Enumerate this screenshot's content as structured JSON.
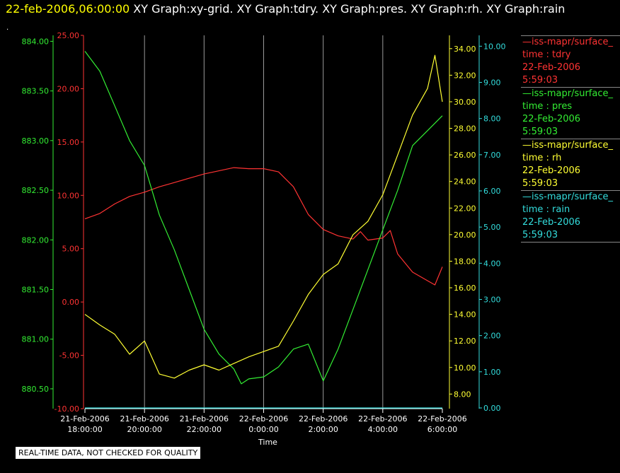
{
  "header": {
    "timestamp": "22-feb-2006,06:00:00",
    "titles": [
      "XY Graph:xy-grid.",
      "XY Graph:tdry.",
      "XY Graph:pres.",
      "XY Graph:rh.",
      "XY Graph:rain"
    ]
  },
  "footer": {
    "quality_note": "REAL-TIME DATA, NOT CHECKED FOR QUALITY"
  },
  "legend": [
    {
      "name": "—iss-mapr/surface_",
      "var": "time : tdry",
      "date": "22-Feb-2006",
      "time": "5:59:03",
      "color": "#ff3333"
    },
    {
      "name": "—iss-mapr/surface_",
      "var": "time : pres",
      "date": "22-Feb-2006",
      "time": "5:59:03",
      "color": "#33ee33"
    },
    {
      "name": "—iss-mapr/surface_",
      "var": "time : rh",
      "date": "22-Feb-2006",
      "time": "5:59:03",
      "color": "#ffff33"
    },
    {
      "name": "—iss-mapr/surface_",
      "var": "time : rain",
      "date": "22-Feb-2006",
      "time": "5:59:03",
      "color": "#33dddd"
    }
  ],
  "chart_data": {
    "type": "line",
    "xlabel": "Time",
    "x_ticks": [
      {
        "value": "2006-02-21T18:00:00",
        "date": "21-Feb-2006",
        "time": "18:00:00"
      },
      {
        "value": "2006-02-21T20:00:00",
        "date": "21-Feb-2006",
        "time": "20:00:00"
      },
      {
        "value": "2006-02-21T22:00:00",
        "date": "21-Feb-2006",
        "time": "22:00:00"
      },
      {
        "value": "2006-02-22T00:00:00",
        "date": "22-Feb-2006",
        "time": "0:00:00"
      },
      {
        "value": "2006-02-22T02:00:00",
        "date": "22-Feb-2006",
        "time": "2:00:00"
      },
      {
        "value": "2006-02-22T04:00:00",
        "date": "22-Feb-2006",
        "time": "4:00:00"
      },
      {
        "value": "2006-02-22T06:00:00",
        "date": "22-Feb-2006",
        "time": "6:00:00"
      }
    ],
    "xlim": [
      "2006-02-21T18:00:00",
      "2006-02-22T06:00:00"
    ],
    "grid": {
      "x": true,
      "y": false
    },
    "axes": {
      "pres": {
        "color": "#33ee33",
        "ylim": [
          880.3,
          884.06
        ],
        "ticks": [
          "880.50",
          "881.00",
          "881.50",
          "882.00",
          "882.50",
          "883.00",
          "883.50",
          "884.00"
        ]
      },
      "tdry": {
        "color": "#ff3333",
        "ylim": [
          -10.0,
          25.0
        ],
        "ticks": [
          "-10.00",
          "-5.00",
          "0.00",
          "5.00",
          "10.00",
          "15.00",
          "20.00",
          "25.00"
        ]
      },
      "rh": {
        "color": "#ffff33",
        "ylim": [
          6.9,
          35.0
        ],
        "ticks": [
          "8.00",
          "10.00",
          "12.00",
          "14.00",
          "16.00",
          "18.00",
          "20.00",
          "22.00",
          "24.00",
          "26.00",
          "28.00",
          "30.00",
          "32.00",
          "34.00"
        ]
      },
      "rain": {
        "color": "#33dddd",
        "ylim": [
          -0.02,
          10.3
        ],
        "ticks": [
          "0.00",
          "1.00",
          "2.00",
          "3.00",
          "4.00",
          "5.00",
          "6.00",
          "7.00",
          "8.00",
          "9.00",
          "10.00"
        ]
      }
    },
    "series": [
      {
        "name": "time : tdry",
        "axis": "tdry",
        "color": "#ff3333",
        "x": [
          "2006-02-21T18:00:00",
          "2006-02-21T18:30:00",
          "2006-02-21T19:00:00",
          "2006-02-21T19:30:00",
          "2006-02-21T20:00:00",
          "2006-02-21T20:30:00",
          "2006-02-21T21:00:00",
          "2006-02-21T21:30:00",
          "2006-02-21T22:00:00",
          "2006-02-21T22:30:00",
          "2006-02-21T23:00:00",
          "2006-02-21T23:30:00",
          "2006-02-22T00:00:00",
          "2006-02-22T00:30:00",
          "2006-02-22T01:00:00",
          "2006-02-22T01:30:00",
          "2006-02-22T02:00:00",
          "2006-02-22T02:30:00",
          "2006-02-22T03:00:00",
          "2006-02-22T03:15:00",
          "2006-02-22T03:30:00",
          "2006-02-22T04:00:00",
          "2006-02-22T04:15:00",
          "2006-02-22T04:30:00",
          "2006-02-22T05:00:00",
          "2006-02-22T05:30:00",
          "2006-02-22T05:45:00",
          "2006-02-22T06:00:00"
        ],
        "y": [
          7.8,
          8.3,
          9.2,
          9.9,
          10.3,
          10.8,
          11.2,
          11.6,
          12.0,
          12.3,
          12.6,
          12.5,
          12.5,
          12.2,
          10.8,
          8.2,
          6.8,
          6.2,
          5.9,
          6.6,
          5.8,
          6.0,
          6.7,
          4.5,
          2.8,
          2.0,
          1.6,
          3.3
        ]
      },
      {
        "name": "time : pres",
        "axis": "pres",
        "color": "#33ee33",
        "x": [
          "2006-02-21T18:00:00",
          "2006-02-21T18:30:00",
          "2006-02-21T19:00:00",
          "2006-02-21T19:30:00",
          "2006-02-21T20:00:00",
          "2006-02-21T20:30:00",
          "2006-02-21T21:00:00",
          "2006-02-21T21:30:00",
          "2006-02-21T22:00:00",
          "2006-02-21T22:30:00",
          "2006-02-21T23:00:00",
          "2006-02-21T23:15:00",
          "2006-02-21T23:30:00",
          "2006-02-22T00:00:00",
          "2006-02-22T00:30:00",
          "2006-02-22T01:00:00",
          "2006-02-22T01:30:00",
          "2006-02-22T02:00:00",
          "2006-02-22T02:30:00",
          "2006-02-22T03:00:00",
          "2006-02-22T03:30:00",
          "2006-02-22T04:00:00",
          "2006-02-22T04:30:00",
          "2006-02-22T05:00:00",
          "2006-02-22T05:30:00",
          "2006-02-22T06:00:00"
        ],
        "y": [
          883.9,
          883.7,
          883.35,
          883.0,
          882.75,
          882.25,
          881.9,
          881.5,
          881.1,
          880.85,
          880.7,
          880.55,
          880.6,
          880.62,
          880.72,
          880.9,
          880.95,
          880.58,
          880.9,
          881.3,
          881.7,
          882.1,
          882.5,
          882.95,
          883.1,
          883.25
        ]
      },
      {
        "name": "time : rh",
        "axis": "rh",
        "color": "#ffff33",
        "x": [
          "2006-02-21T18:00:00",
          "2006-02-21T18:30:00",
          "2006-02-21T19:00:00",
          "2006-02-21T19:30:00",
          "2006-02-21T20:00:00",
          "2006-02-21T20:30:00",
          "2006-02-21T21:00:00",
          "2006-02-21T21:30:00",
          "2006-02-21T22:00:00",
          "2006-02-21T22:30:00",
          "2006-02-21T23:00:00",
          "2006-02-21T23:30:00",
          "2006-02-22T00:00:00",
          "2006-02-22T00:30:00",
          "2006-02-22T01:00:00",
          "2006-02-22T01:30:00",
          "2006-02-22T02:00:00",
          "2006-02-22T02:30:00",
          "2006-02-22T03:00:00",
          "2006-02-22T03:30:00",
          "2006-02-22T04:00:00",
          "2006-02-22T04:30:00",
          "2006-02-22T05:00:00",
          "2006-02-22T05:30:00",
          "2006-02-22T05:45:00",
          "2006-02-22T06:00:00"
        ],
        "y": [
          14.0,
          13.2,
          12.5,
          11.0,
          12.0,
          9.5,
          9.2,
          9.8,
          10.2,
          9.8,
          10.3,
          10.8,
          11.2,
          11.6,
          13.5,
          15.5,
          17.0,
          17.8,
          20.0,
          21.0,
          23.0,
          26.0,
          29.0,
          31.0,
          33.5,
          30.0
        ]
      },
      {
        "name": "time : rain",
        "axis": "rain",
        "color": "#33dddd",
        "x": [
          "2006-02-21T18:00:00",
          "2006-02-22T06:00:00"
        ],
        "y": [
          0.0,
          0.0
        ]
      }
    ]
  }
}
